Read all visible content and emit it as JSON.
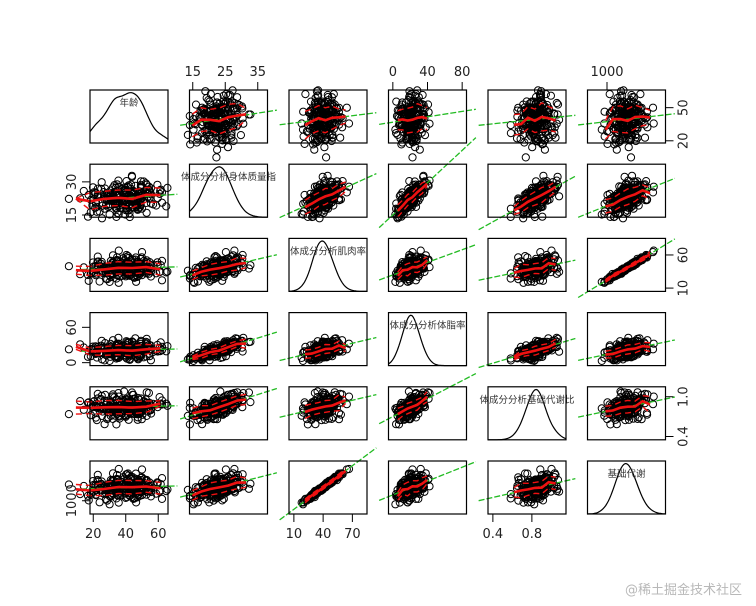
{
  "chart_data": {
    "type": "scatter",
    "layout": "scatterplot-matrix",
    "variables": [
      {
        "label": "年龄",
        "range": [
          18,
          66
        ],
        "ticks": [
          20,
          40,
          60
        ],
        "tick_labels": [
          "20",
          "40",
          "60"
        ],
        "tick_side": "bottom"
      },
      {
        "label": "体成分分析身体质量指",
        "range": [
          14,
          38
        ],
        "ticks": [
          15,
          25,
          35
        ],
        "tick_labels": [
          "15",
          "25",
          "35"
        ],
        "tick_side": "top",
        "row_ticks": [
          15,
          30
        ],
        "row_tick_labels": [
          "15",
          "30"
        ]
      },
      {
        "label": "体成分分析肌肉率",
        "range": [
          5,
          85
        ],
        "ticks": [
          10,
          40,
          70
        ],
        "tick_labels": [
          "10",
          "40",
          "70"
        ],
        "tick_side": "bottom",
        "row_ticks": [
          10,
          60
        ],
        "row_tick_labels": [
          "10",
          "60"
        ]
      },
      {
        "label": "体成分分析体脂率",
        "range": [
          -5,
          85
        ],
        "ticks": [
          0,
          40,
          80
        ],
        "tick_labels": [
          "0",
          "40",
          "80"
        ],
        "tick_side": "top",
        "row_ticks": [
          0,
          60
        ],
        "row_tick_labels": [
          "0",
          "60"
        ]
      },
      {
        "label": "体成分分析基础代谢比",
        "range": [
          0.35,
          1.15
        ],
        "ticks": [
          0.4,
          0.8
        ],
        "tick_labels": [
          "0.4",
          "0.8"
        ],
        "tick_side": "bottom",
        "row_ticks": [
          0.4,
          1.0
        ],
        "row_tick_labels": [
          "0.4",
          "1.0"
        ]
      },
      {
        "label": "基础代谢",
        "range": [
          700,
          1900
        ],
        "ticks": [
          1000
        ],
        "tick_labels": [
          "1000"
        ],
        "tick_side": "top",
        "row_ticks": [
          1000
        ],
        "row_tick_labels": [
          "1000"
        ]
      }
    ],
    "row1_right_tick_labels": [
      "20",
      "50"
    ],
    "row1_right_ticks": [
      20,
      50
    ],
    "diagonal": "density",
    "regression_line_color": "#22bb22",
    "smooth_line_color": "#ee1111",
    "point_color": "#000000",
    "grid": false
  },
  "watermark": "@稀土掘金技术社区"
}
